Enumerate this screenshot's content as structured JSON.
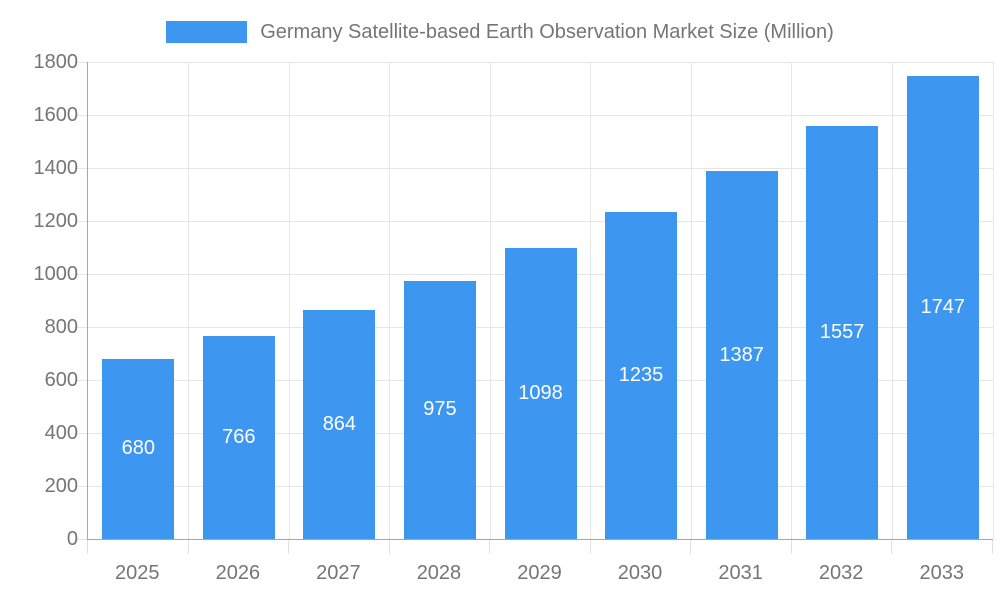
{
  "legend": {
    "swatch_color": "#3D96F0",
    "label": "Germany Satellite-based Earth Observation Market Size (Million)"
  },
  "colors": {
    "bar": "#3D96F0",
    "bar_label": "#ffffff",
    "axis_line": "#a6a6a6",
    "gridline": "#e6e6e6",
    "tick": "#e0e0e0",
    "axis_text": "#757575",
    "background": "#ffffff"
  },
  "chart_data": {
    "type": "bar",
    "title": "Germany Satellite-based Earth Observation Market Size (Million)",
    "categories": [
      "2025",
      "2026",
      "2027",
      "2028",
      "2029",
      "2030",
      "2031",
      "2032",
      "2033"
    ],
    "values": [
      680,
      766,
      864,
      975,
      1098,
      1235,
      1387,
      1557,
      1747
    ],
    "xlabel": "",
    "ylabel": "",
    "ylim": [
      0,
      1800
    ],
    "ytick_step": 200,
    "ytick_labels": [
      "0",
      "200",
      "400",
      "600",
      "800",
      "1000",
      "1200",
      "1400",
      "1600",
      "1800"
    ],
    "grid": true,
    "legend_position": "top",
    "value_labels": "inside-center"
  }
}
